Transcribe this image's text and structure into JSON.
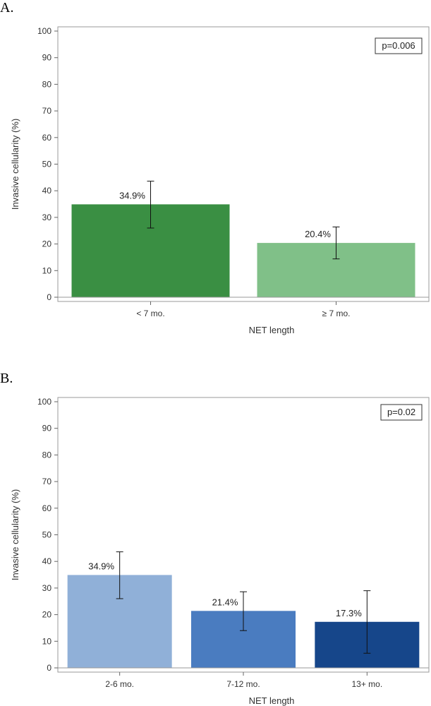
{
  "chart_data": [
    {
      "panel": "A.",
      "type": "bar",
      "xlabel": "NET length",
      "ylabel": "Invasive cellularity (%)",
      "ylim": [
        0,
        100
      ],
      "yticks": [
        0,
        10,
        20,
        30,
        40,
        50,
        60,
        70,
        80,
        90,
        100
      ],
      "categories": [
        "< 7 mo.",
        "≥ 7 mo."
      ],
      "values": [
        34.9,
        20.4
      ],
      "value_labels": [
        "34.9%",
        "20.4%"
      ],
      "error_low": [
        26.0,
        14.4
      ],
      "error_high": [
        43.6,
        26.4
      ],
      "colors": [
        "#3a8f43",
        "#80c088"
      ],
      "annotation": "p=0.006",
      "grid": false
    },
    {
      "panel": "B.",
      "type": "bar",
      "xlabel": "NET length",
      "ylabel": "Invasive cellularity (%)",
      "ylim": [
        0,
        100
      ],
      "yticks": [
        0,
        10,
        20,
        30,
        40,
        50,
        60,
        70,
        80,
        90,
        100
      ],
      "categories": [
        "2-6 mo.",
        "7-12 mo.",
        "13+ mo."
      ],
      "values": [
        34.9,
        21.4,
        17.3
      ],
      "value_labels": [
        "34.9%",
        "21.4%",
        "17.3%"
      ],
      "error_low": [
        26.0,
        14.0,
        5.5
      ],
      "error_high": [
        43.6,
        28.6,
        29.0
      ],
      "colors": [
        "#90b0d8",
        "#4a7cc0",
        "#16468a"
      ],
      "annotation": "p=0.02",
      "grid": false
    }
  ]
}
